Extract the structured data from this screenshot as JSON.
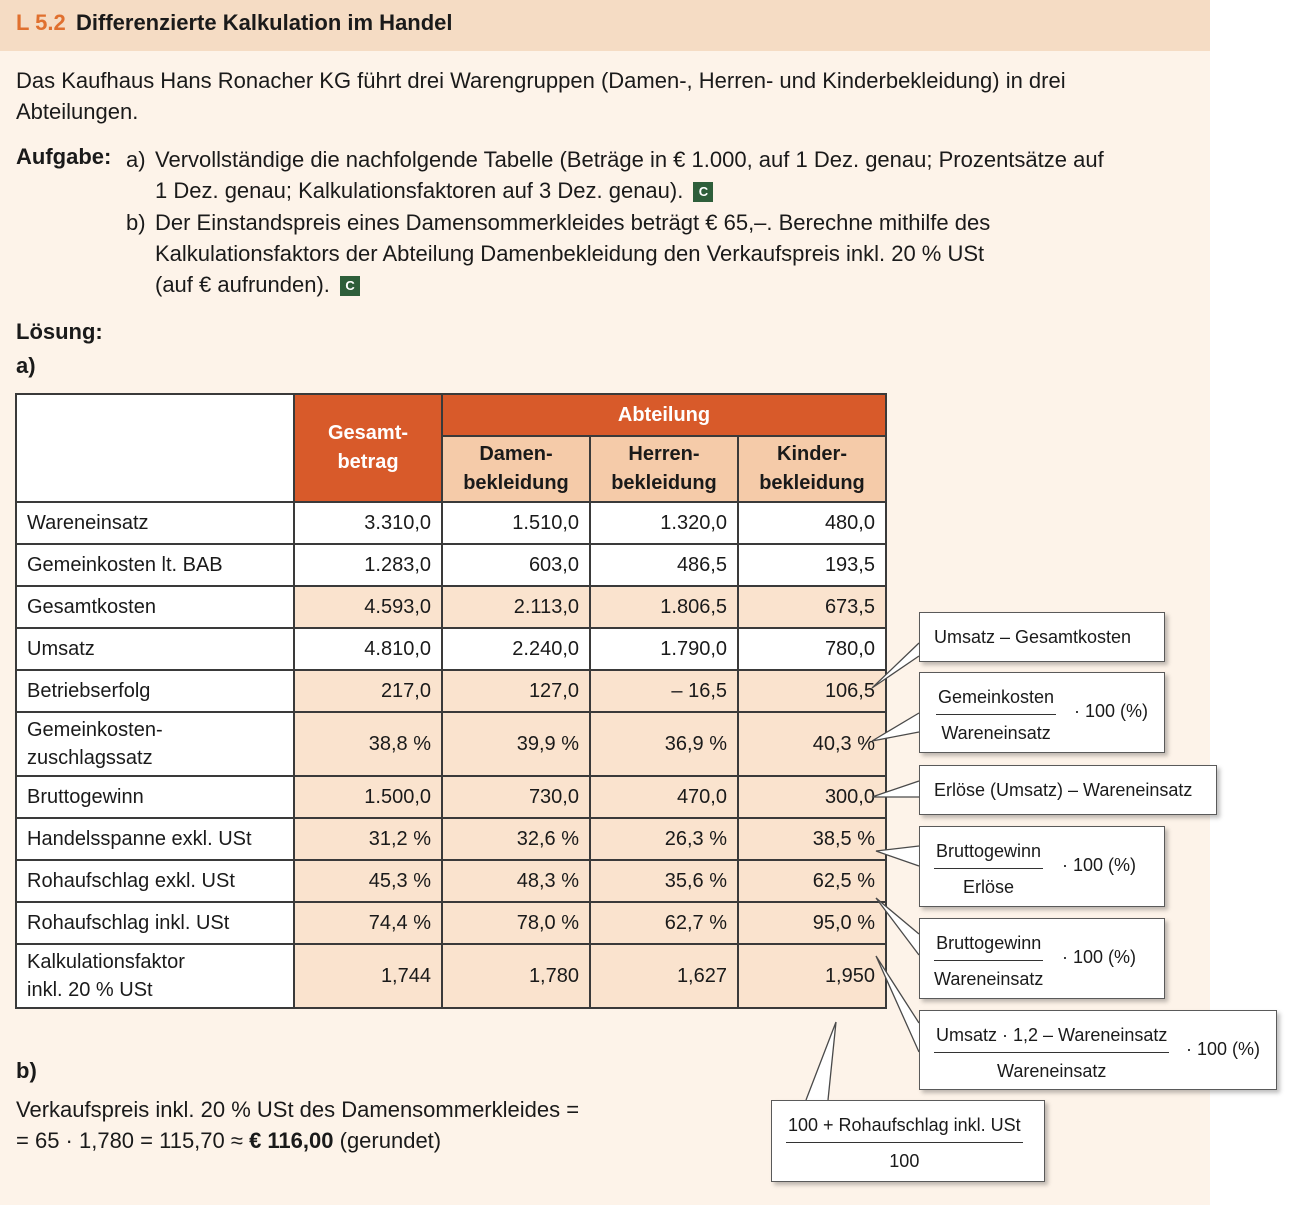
{
  "header": {
    "number": "L 5.2",
    "title": "Differenzierte Kalkulation im Handel"
  },
  "intro": "Das Kaufhaus Hans Ronacher KG führt drei Warengruppen (Damen-, Herren- und Kinderbekleidung) in drei Abteilungen.",
  "task": {
    "label": "Aufgabe:",
    "a_label": "a)",
    "a_line1": "Vervollständige  die nachfolgende Tabelle (Beträge in € 1.000, auf 1 Dez. genau; Prozentsätze auf",
    "a_line2": "1 Dez. genau; Kalkulationsfaktoren auf 3 Dez. genau).",
    "b_label": "b)",
    "b_line1": "Der Einstandspreis eines Damensommerkleides beträgt € 65,–. Berechne mithilfe des",
    "b_line2": "Kalkulationsfaktors der Abteilung Damenbekleidung den Verkaufspreis inkl. 20 % USt",
    "b_line3": "(auf € aufrunden).",
    "badge": "C"
  },
  "solution": {
    "heading": "Lösung:",
    "a": "a)",
    "b": "b)"
  },
  "table": {
    "gesamt_header": [
      "Gesamt-",
      "betrag"
    ],
    "abteilung_header": "Abteilung",
    "sub_headers": [
      [
        "Damen-",
        "bekleidung"
      ],
      [
        "Herren-",
        "bekleidung"
      ],
      [
        "Kinder-",
        "bekleidung"
      ]
    ],
    "rows": [
      {
        "label": [
          "Wareneinsatz"
        ],
        "values": [
          "3.310,0",
          "1.510,0",
          "1.320,0",
          "480,0"
        ],
        "shade": "white"
      },
      {
        "label": [
          "Gemeinkosten lt. BAB"
        ],
        "values": [
          "1.283,0",
          "603,0",
          "486,5",
          "193,5"
        ],
        "shade": "white"
      },
      {
        "label": [
          "Gesamtkosten"
        ],
        "values": [
          "4.593,0",
          "2.113,0",
          "1.806,5",
          "673,5"
        ],
        "shade": "tint"
      },
      {
        "label": [
          "Umsatz"
        ],
        "values": [
          "4.810,0",
          "2.240,0",
          "1.790,0",
          "780,0"
        ],
        "shade": "white"
      },
      {
        "label": [
          "Betriebserfolg"
        ],
        "values": [
          "217,0",
          "127,0",
          "– 16,5",
          "106,5"
        ],
        "shade": "tint"
      },
      {
        "label": [
          "Gemeinkosten-",
          "zuschlagssatz"
        ],
        "values": [
          "38,8 %",
          "39,9 %",
          "36,9 %",
          "40,3 %"
        ],
        "shade": "tint"
      },
      {
        "label": [
          "Bruttogewinn"
        ],
        "values": [
          "1.500,0",
          "730,0",
          "470,0",
          "300,0"
        ],
        "shade": "tint"
      },
      {
        "label": [
          "Handelsspanne exkl. USt"
        ],
        "values": [
          "31,2 %",
          "32,6 %",
          "26,3 %",
          "38,5 %"
        ],
        "shade": "tint"
      },
      {
        "label": [
          "Rohaufschlag exkl. USt"
        ],
        "values": [
          "45,3 %",
          "48,3 %",
          "35,6 %",
          "62,5 %"
        ],
        "shade": "tint"
      },
      {
        "label": [
          "Rohaufschlag inkl. USt"
        ],
        "values": [
          "74,4 %",
          "78,0 %",
          "62,7 %",
          "95,0 %"
        ],
        "shade": "tint"
      },
      {
        "label": [
          "Kalkulationsfaktor",
          "inkl. 20 % USt"
        ],
        "values": [
          "1,744",
          "1,780",
          "1,627",
          "1,950"
        ],
        "shade": "tint"
      }
    ]
  },
  "callouts": {
    "c1": "Umsatz – Gesamtkosten",
    "c2": {
      "num": "Gemeinkosten",
      "den": "Wareneinsatz",
      "factor": "· 100 (%)"
    },
    "c3": "Erlöse (Umsatz) – Wareneinsatz",
    "c4": {
      "num": "Bruttogewinn",
      "den": "Erlöse",
      "factor": "· 100 (%)"
    },
    "c5": {
      "num": "Bruttogewinn",
      "den": "Wareneinsatz",
      "factor": "· 100 (%)"
    },
    "c6": {
      "num": "Umsatz  · 1,2 – Wareneinsatz",
      "den": "Wareneinsatz",
      "factor": "· 100 (%)"
    },
    "c7": {
      "num": "100 + Rohaufschlag inkl. USt",
      "den": "100"
    }
  },
  "part_b": {
    "line1": "Verkaufspreis inkl. 20 % USt des Damensommerkleides =",
    "line2_prefix": "= 65  · 1,780 = 115,70 ≈ ",
    "line2_bold": "€ 116,00",
    "line2_suffix": " (gerundet)"
  }
}
